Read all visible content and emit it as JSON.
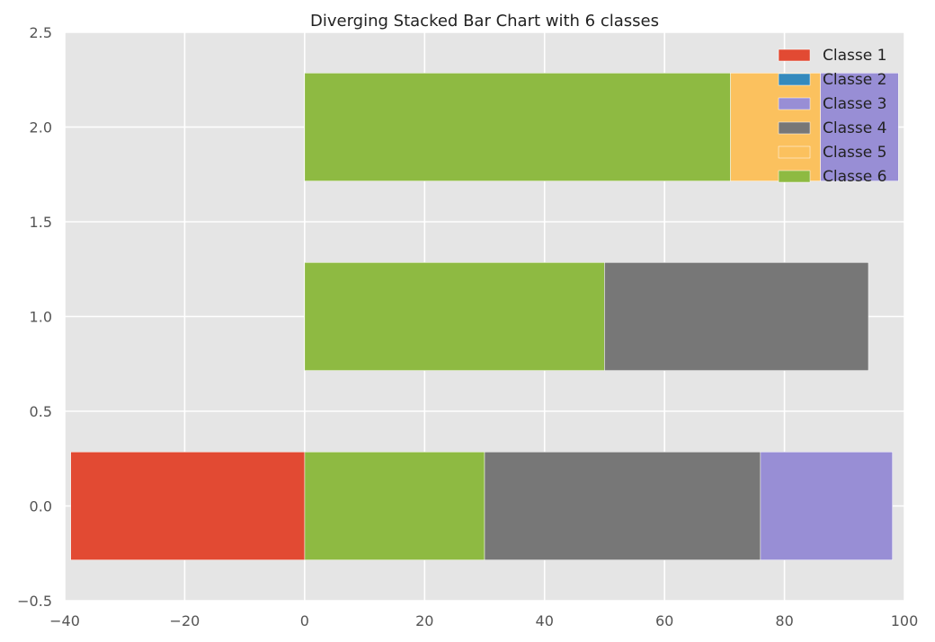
{
  "chart_data": {
    "type": "bar",
    "orientation": "horizontal",
    "stacked": true,
    "diverging": true,
    "title": "Diverging Stacked Bar Chart with 6 classes",
    "xlabel": "",
    "ylabel": "",
    "xlim": [
      -40,
      100
    ],
    "ylim": [
      -0.5,
      2.5
    ],
    "x_ticks": [
      -40,
      -20,
      0,
      20,
      40,
      60,
      80,
      100
    ],
    "x_tick_labels": [
      "−40",
      "−20",
      "0",
      "20",
      "40",
      "60",
      "80",
      "100"
    ],
    "y_ticks": [
      -0.5,
      0.0,
      0.5,
      1.0,
      1.5,
      2.0,
      2.5
    ],
    "y_tick_labels": [
      "−0.5",
      "0.0",
      "0.5",
      "1.0",
      "1.5",
      "2.0",
      "2.5"
    ],
    "grid": true,
    "legend_position": "top-right",
    "categories": [
      0,
      1,
      2
    ],
    "bar_height": 0.57,
    "series": [
      {
        "name": "Classe 1",
        "color": "#E24A33",
        "values": [
          -39,
          0,
          0
        ]
      },
      {
        "name": "Classe 2",
        "color": "#348ABD",
        "values": [
          0,
          0,
          0
        ]
      },
      {
        "name": "Classe 3",
        "color": "#988ED5",
        "values": [
          22,
          0,
          13
        ]
      },
      {
        "name": "Classe 4",
        "color": "#777777",
        "values": [
          46,
          44,
          0
        ]
      },
      {
        "name": "Classe 5",
        "color": "#FBC15E",
        "values": [
          0,
          0,
          15
        ]
      },
      {
        "name": "Classe 6",
        "color": "#8EBA42",
        "values": [
          30,
          50,
          71
        ]
      }
    ],
    "positive_stack_order": [
      "Classe 6",
      "Classe 4",
      "Classe 5",
      "Classe 3"
    ],
    "negative_stack_order": [
      "Classe 1",
      "Classe 2"
    ]
  }
}
